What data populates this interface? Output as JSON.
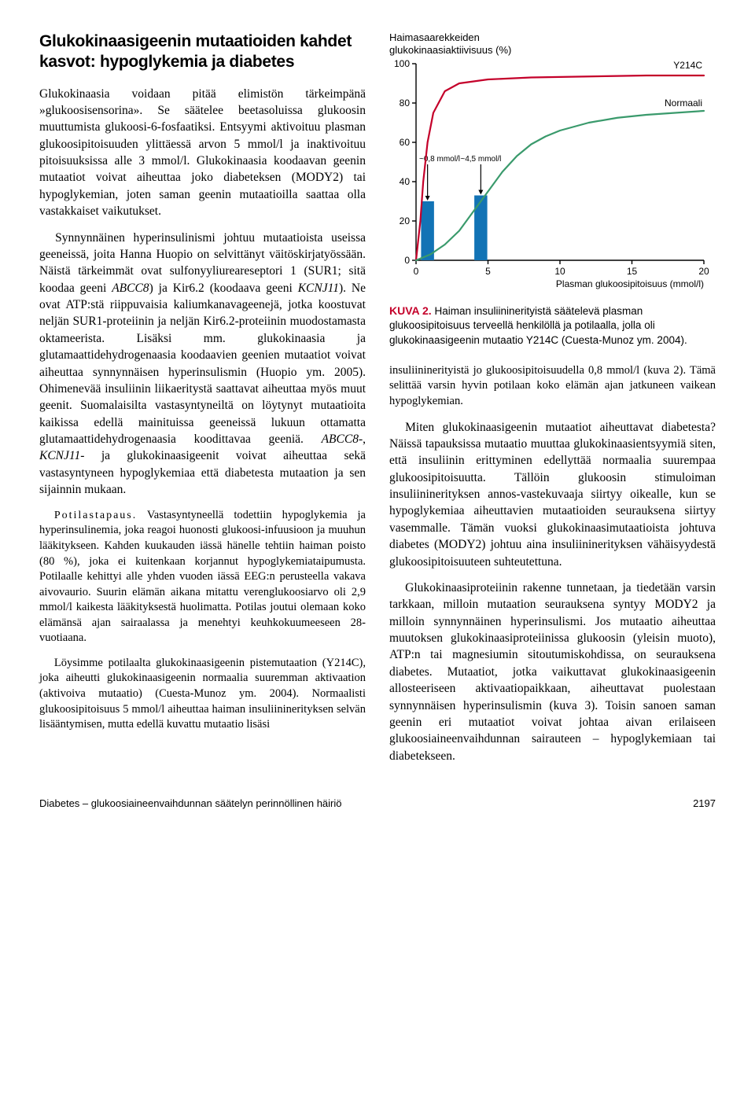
{
  "left": {
    "heading": "Glukokinaasigeenin mutaatioiden kahdet kasvot: hypoglykemia ja diabetes",
    "p1": "Glukokinaasia voidaan pitää elimistön tärkeimpänä »glukoosisensorina». Se säätelee beetasoluissa glukoosin muuttumista glukoosi-6-fosfaatiksi. Entsyymi aktivoituu plasman glukoosipitoisuuden ylittäessä arvon 5 mmol/l ja inaktivoituu pitoisuuksissa alle 3 mmol/l. Glukokinaasia koodaavan geenin mutaatiot voivat aiheuttaa joko diabeteksen (MODY2) tai hypoglykemian, joten saman geenin mutaatioilla saattaa olla vastakkaiset vaikutukset.",
    "p2a": "Synnynnäinen hyperinsulinismi johtuu mutaatioista useissa geeneissä, joita Hanna Huopio on selvittänyt väitöskirjatyössään. Näistä tärkeimmät ovat sulfonyyliureareseptori 1 (SUR1; sitä koodaa geeni ",
    "p2_gene1": "ABCC8",
    "p2b": ") ja Kir6.2 (koodaava geeni ",
    "p2_gene2": "KCNJ11",
    "p2c": "). Ne ovat ATP:stä riippuvaisia kaliumkanavageenejä, jotka koostuvat neljän SUR1-proteiinin ja neljän Kir6.2-proteiinin muodostamasta oktameerista. Lisäksi mm. glukokinaasia ja glutamaattidehydrogenaasia koodaavien geenien mutaatiot voivat aiheuttaa synnynnäisen hyperinsulismin (Huopio ym. 2005). Ohimenevää insuliinin liikaeritystä saattavat aiheuttaa myös muut geenit. Suomalaisilta vastasyntyneiltä on löytynyt mutaatioita kaikissa edellä mainituissa geeneissä lukuun ottamatta glutamaattidehydrogenaasia koodittavaa geeniä. ",
    "p2_gene3": "ABCC8",
    "p2d": "-, ",
    "p2_gene4": "KCNJ11",
    "p2e": "- ja glukokinaasigeenit voivat aiheuttaa sekä vastasyntyneen hypoglykemiaa että diabetesta mutaation ja sen sijainnin mukaan.",
    "case_label": "Potilastapaus.",
    "case_body1": " Vastasyntyneellä todettiin hypoglykemia ja hyperinsulinemia, joka reagoi huonosti glukoosi-infuusioon ja muuhun lääkitykseen. Kahden kuukauden iässä hänelle tehtiin haiman poisto (80 %), joka ei kuitenkaan korjannut hypoglykemiataipumusta. Potilaalle kehittyi alle yhden vuoden iässä EEG:n perusteella vakava aivovaurio. Suurin elämän aikana mitattu verenglukoosiarvo oli 2,9 mmol/l kaikesta lääkityksestä huolimatta. Potilas joutui olemaan koko elämänsä ajan sairaalassa ja menehtyi keuhkokuumeeseen 28-vuotiaana.",
    "case_body2": "Löysimme potilaalta glukokinaasigeenin pistemutaation (Y214C), joka aiheutti glukokinaasigeenin normaalia suuremman aktivaation (aktivoiva mutaatio) (Cuesta-Munoz ym. 2004). Normaalisti glukoosipitoisuus 5 mmol/l aiheuttaa haiman insuliininerityksen selvän lisääntymisen, mutta edellä kuvattu mutaatio lisäsi"
  },
  "right": {
    "chart": {
      "title1": "Haimasaarekkeiden",
      "title2": "glukokinaasiaktiivisuus (%)",
      "x_label": "Plasman glukoosipitoisuus (mmol/l)",
      "y_ticks": [
        0,
        20,
        40,
        60,
        80,
        100
      ],
      "x_ticks": [
        0,
        5,
        10,
        15,
        20
      ],
      "xlim": [
        0,
        20
      ],
      "ylim": [
        0,
        100
      ],
      "bars": [
        {
          "x": 0.8,
          "y": 30,
          "color": "#1273b5",
          "label": "~0,8 mmol/l",
          "label_fontsize": 10
        },
        {
          "x": 4.5,
          "y": 33,
          "color": "#1273b5",
          "label": "~4,5 mmol/l",
          "label_fontsize": 10
        }
      ],
      "bar_width_mmoll": 0.9,
      "arrow_color": "#000000",
      "curves": {
        "y214c": {
          "color": "#c4002a",
          "width": 2.2,
          "label": "Y214C",
          "points": [
            [
              0,
              0
            ],
            [
              0.3,
              20
            ],
            [
              0.5,
              40
            ],
            [
              0.8,
              60
            ],
            [
              1.2,
              75
            ],
            [
              2,
              86
            ],
            [
              3,
              90
            ],
            [
              5,
              92
            ],
            [
              8,
              93
            ],
            [
              12,
              93.5
            ],
            [
              16,
              94
            ],
            [
              20,
              94
            ]
          ]
        },
        "normal": {
          "color": "#3a9a6c",
          "width": 2.2,
          "label": "Normaali",
          "points": [
            [
              0,
              0
            ],
            [
              1,
              3
            ],
            [
              2,
              8
            ],
            [
              3,
              15
            ],
            [
              4,
              25
            ],
            [
              5,
              35
            ],
            [
              6,
              45
            ],
            [
              7,
              53
            ],
            [
              8,
              59
            ],
            [
              9,
              63
            ],
            [
              10,
              66
            ],
            [
              12,
              70
            ],
            [
              14,
              72.5
            ],
            [
              16,
              74
            ],
            [
              18,
              75
            ],
            [
              20,
              76
            ]
          ]
        }
      },
      "axis_color": "#000000",
      "axis_width": 1.4,
      "tick_fontsize": 12,
      "background": "#ffffff"
    },
    "kuva_label": "KUVA 2.",
    "kuva_caption": " Haiman insuliininerityistä säätelevä plasman glukoosipitoisuus terveellä henkilöllä ja potilaalla, jolla oli glukokinaasigeenin mutaatio Y214C (Cuesta-Munoz ym. 2004).",
    "p1": "insuliininerityistä jo glukoosipitoisuudella 0,8 mmol/l (kuva 2). Tämä selittää varsin hyvin potilaan koko elämän ajan jatkuneen vaikean hypoglykemian.",
    "p2": "Miten glukokinaasigeenin mutaatiot aiheuttavat diabetesta? Näissä tapauksissa mutaatio muuttaa glukokinaasientsyymiä siten, että insuliinin erittyminen edellyttää normaalia suurempaa glukoosipitoisuutta. Tällöin glukoosin stimuloiman insuliininerityksen annos-vastekuvaaja siirtyy oikealle, kun se hypoglykemiaa aiheuttavien mutaatioiden seurauksena siirtyy vasemmalle. Tämän vuoksi glukokinaasimutaatioista johtuva diabetes (MODY2) johtuu aina insuliininerityksen vähäisyydestä glukoosipitoisuuteen suhteutettuna.",
    "p3": "Glukokinaasiproteiinin rakenne tunnetaan, ja tiedetään varsin tarkkaan, milloin mutaation seurauksena syntyy MODY2 ja milloin synnynnäinen hyperinsulismi. Jos mutaatio aiheuttaa muutoksen glukokinaasiproteiinissa glukoosin (yleisin muoto), ATP:n tai magnesiumin sitoutumiskohdissa, on seurauksena diabetes. Mutaatiot, jotka vaikuttavat glukokinaasigeenin allosteeriseen aktivaatiopaikkaan, aiheuttavat puolestaan synnynnäisen hyperinsulismin (kuva 3). Toisin sanoen saman geenin eri mutaatiot voivat johtaa aivan erilaiseen glukoosiaineenvaihdunnan sairauteen – hypoglykemiaan tai diabetekseen."
  },
  "footer": {
    "running": "Diabetes – glukoosiaineenvaihdunnan säätelyn perinnöllinen häiriö",
    "page": "2197"
  }
}
